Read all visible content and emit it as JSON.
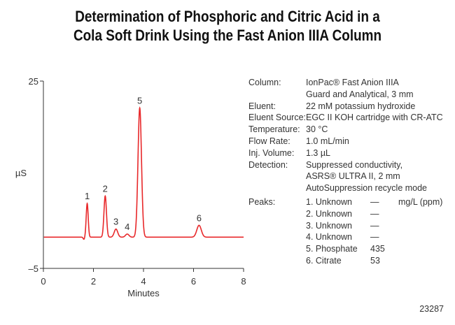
{
  "title": {
    "line1": "Determination of Phosphoric and Citric Acid in a",
    "line2": "Cola Soft Drink Using the Fast Anion IIIA Column"
  },
  "chart_data": {
    "type": "line",
    "xlabel": "Minutes",
    "ylabel": "µS",
    "xlim": [
      0,
      8
    ],
    "ylim": [
      -5,
      25
    ],
    "xticks": [
      0,
      2,
      4,
      6,
      8
    ],
    "yticks": [
      -5,
      25
    ],
    "x_tick_labels": [
      "0",
      "2",
      "4",
      "6",
      "8"
    ],
    "y_tick_labels": [
      "–5",
      "25"
    ],
    "grid": false,
    "line_color": "#e8282a",
    "baseline_uS": 0,
    "peaks": [
      {
        "label": "1",
        "x": 1.75,
        "height": 5.4,
        "width": 0.04
      },
      {
        "label": "2",
        "x": 2.47,
        "height": 6.6,
        "width": 0.05
      },
      {
        "label": "3",
        "x": 2.9,
        "height": 1.3,
        "width": 0.07
      },
      {
        "label": "4",
        "x": 3.35,
        "height": 0.5,
        "width": 0.07
      },
      {
        "label": "5",
        "x": 3.85,
        "height": 20.7,
        "width": 0.07
      },
      {
        "label": "6",
        "x": 6.22,
        "height": 1.9,
        "width": 0.09
      }
    ]
  },
  "conditions": [
    {
      "key": "Column:",
      "lines": [
        "IonPac® Fast Anion IIIA",
        "Guard and Analytical, 3 mm"
      ]
    },
    {
      "key": "Eluent:",
      "lines": [
        "22 mM potassium hydroxide"
      ]
    },
    {
      "key": "Eluent Source:",
      "lines": [
        "EGC II KOH cartridge with CR-ATC"
      ]
    },
    {
      "key": "Temperature:",
      "lines": [
        "30 °C"
      ]
    },
    {
      "key": "Flow Rate:",
      "lines": [
        "1.0 mL/min"
      ]
    },
    {
      "key": "Inj. Volume:",
      "lines": [
        "1.3 µL"
      ]
    },
    {
      "key": "Detection:",
      "lines": [
        "Suppressed conductivity,",
        "ASRS® ULTRA II, 2 mm",
        "AutoSuppression recycle mode"
      ]
    }
  ],
  "peaks_table": {
    "key": "Peaks:",
    "rows": [
      {
        "name": "1. Unknown",
        "value": "—",
        "unit": "mg/L (ppm)"
      },
      {
        "name": "2. Unknown",
        "value": "—",
        "unit": ""
      },
      {
        "name": "3. Unknown",
        "value": "—",
        "unit": ""
      },
      {
        "name": "4. Unknown",
        "value": "—",
        "unit": ""
      },
      {
        "name": "5. Phosphate",
        "value": "435",
        "unit": ""
      },
      {
        "name": "6. Citrate",
        "value": "53",
        "unit": ""
      }
    ]
  },
  "figure_code": "23287"
}
